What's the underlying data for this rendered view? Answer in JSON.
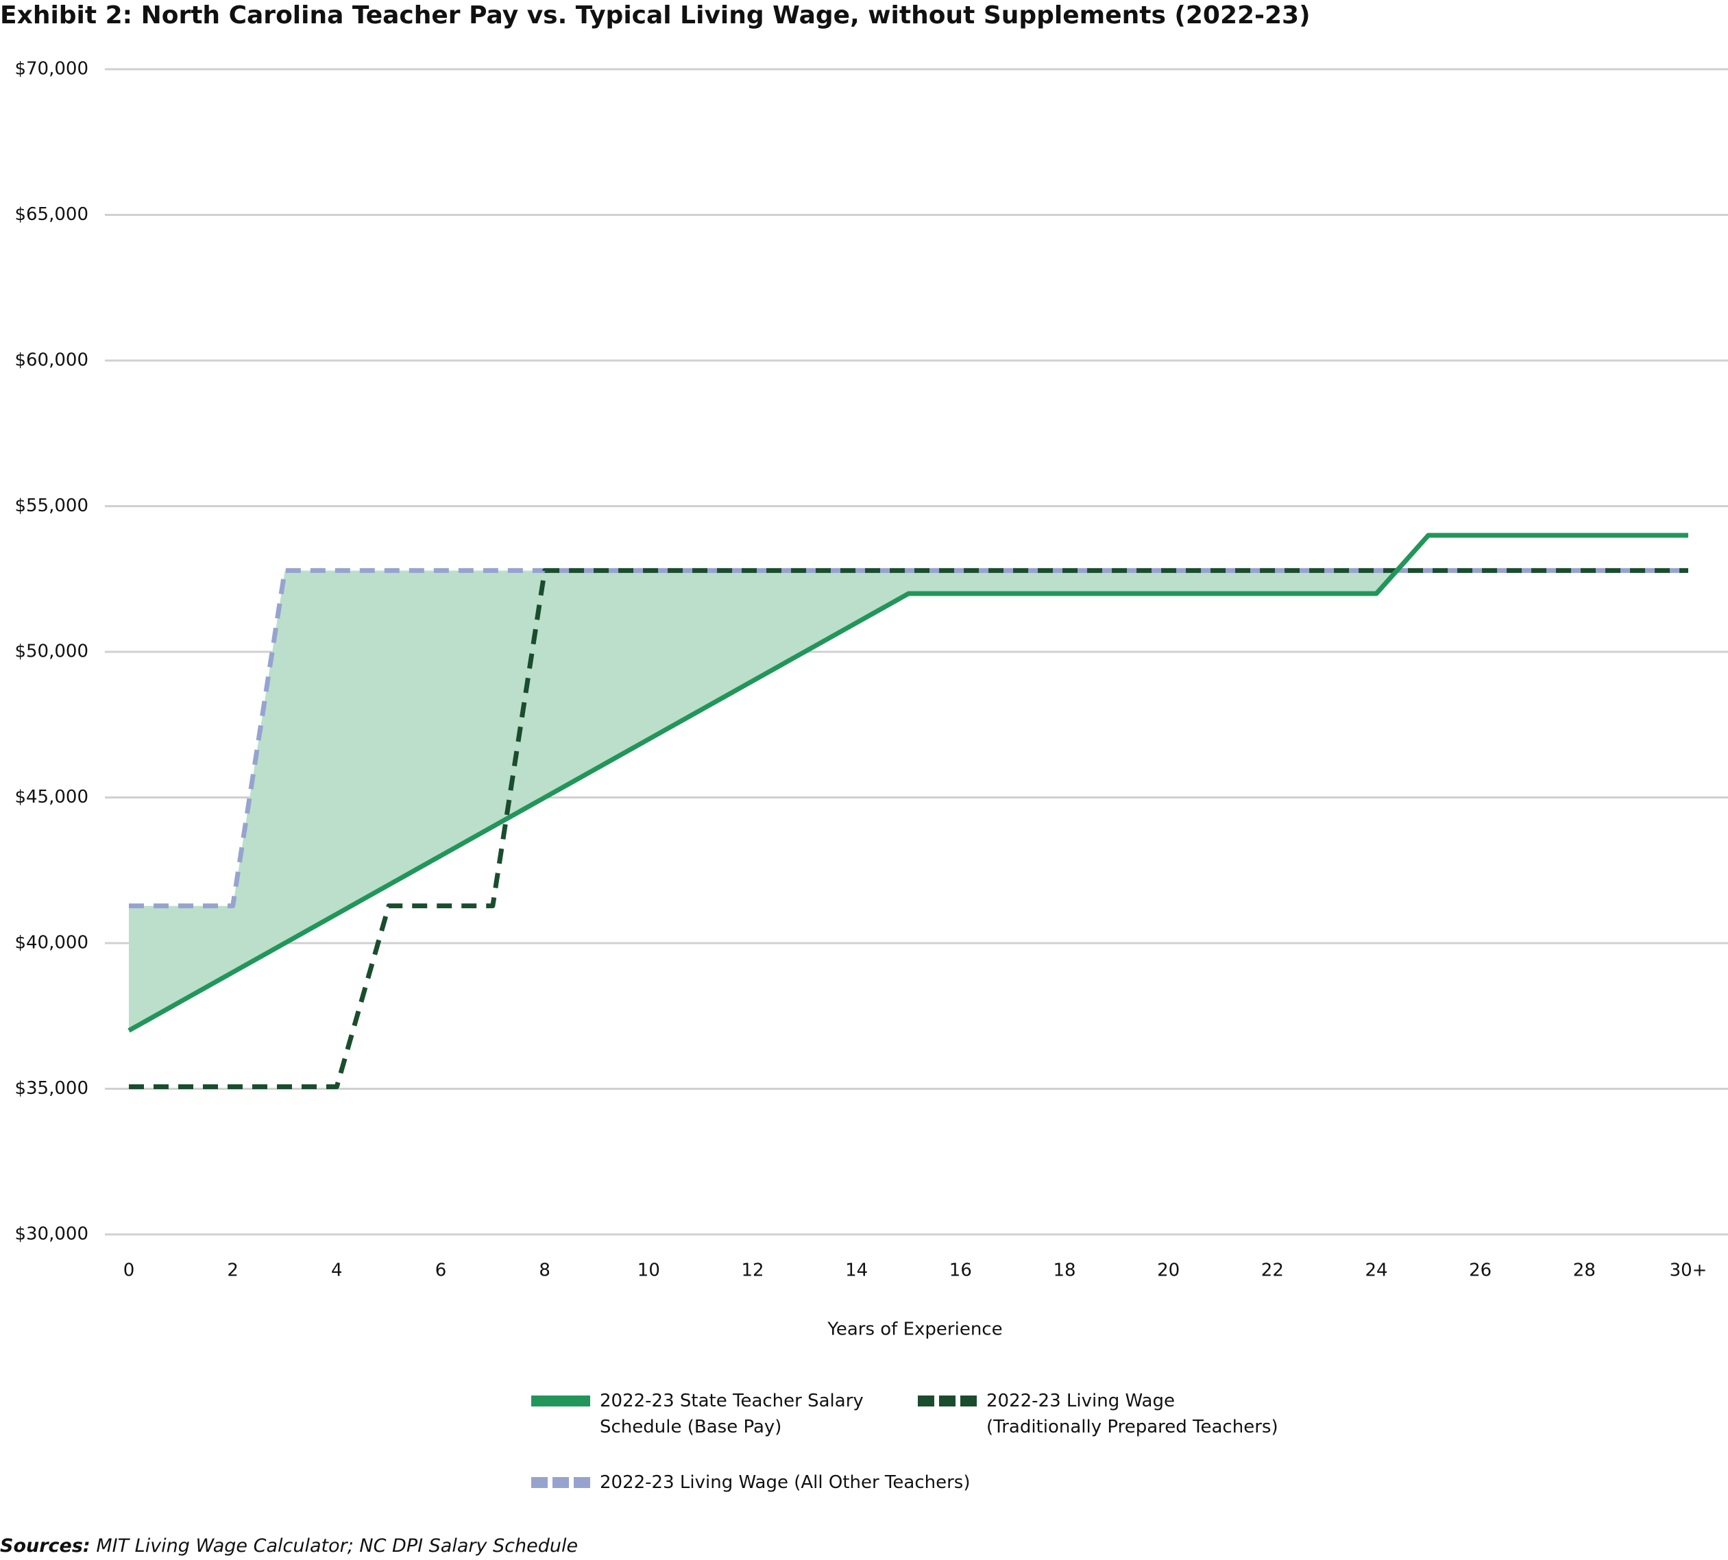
{
  "chart_data": {
    "type": "line",
    "title": "Exhibit 2: North Carolina Teacher Pay vs. Typical Living Wage, without Supplements (2022-23)",
    "x_label": "Years of Experience",
    "categories": [
      "0",
      null,
      "2",
      null,
      "4",
      null,
      "6",
      null,
      "8",
      null,
      "10",
      null,
      "12",
      null,
      "14",
      null,
      "16",
      null,
      "18",
      null,
      "20",
      null,
      "22",
      null,
      "24",
      null,
      "26",
      null,
      "28",
      null,
      "30+"
    ],
    "series": [
      {
        "name": "2022-23 State Teacher Salary Schedule (Base Pay)",
        "color": "#22965a",
        "dash": false,
        "values": [
          37000,
          38000,
          39000,
          40000,
          41000,
          42000,
          43000,
          44000,
          45000,
          46000,
          47000,
          48000,
          49000,
          50000,
          51000,
          52000,
          52000,
          52000,
          52000,
          52000,
          52000,
          52000,
          52000,
          52000,
          52000,
          54000,
          54000,
          54000,
          54000,
          54000,
          54000
        ]
      },
      {
        "name": "2022-23 Living Wage (Traditionally Prepared Teachers)",
        "color": "#1a4d2e",
        "dash": true,
        "values": [
          35070,
          35070,
          35070,
          35070,
          35070,
          41280,
          41280,
          41280,
          52790,
          52790,
          52790,
          52790,
          52790,
          52790,
          52790,
          52790,
          52790,
          52790,
          52790,
          52790,
          52790,
          52790,
          52790,
          52790,
          52790,
          52790,
          52790,
          52790,
          52790,
          52790,
          52790
        ]
      },
      {
        "name": "2022-23 Living Wage (All Other Teachers)",
        "color": "#97a3cf",
        "dash": true,
        "values": [
          41280,
          41280,
          41280,
          52790,
          52790,
          52790,
          52790,
          52790,
          52790,
          52790,
          52790,
          52790,
          52790,
          52790,
          52790,
          52790,
          52790,
          52790,
          52790,
          52790,
          52790,
          52790,
          52790,
          52790,
          52790,
          52790,
          52790,
          52790,
          52790,
          52790,
          52790
        ]
      }
    ],
    "fill_color": "#bbdfcb",
    "ylim": [
      30000,
      70000
    ],
    "yticks": [
      {
        "value": 30000,
        "label": "$30,000"
      },
      {
        "value": 35000,
        "label": "$35,000"
      },
      {
        "value": 40000,
        "label": "$40,000"
      },
      {
        "value": 45000,
        "label": "$45,000"
      },
      {
        "value": 50000,
        "label": "$50,000"
      },
      {
        "value": 55000,
        "label": "$55,000"
      },
      {
        "value": 60000,
        "label": "$60,000"
      },
      {
        "value": 65000,
        "label": "$65,000"
      },
      {
        "value": 70000,
        "label": "$70,000"
      }
    ],
    "grid": true,
    "source_label": "Sources:",
    "source_text": "MIT Living Wage Calculator; NC DPI Salary Schedule"
  }
}
